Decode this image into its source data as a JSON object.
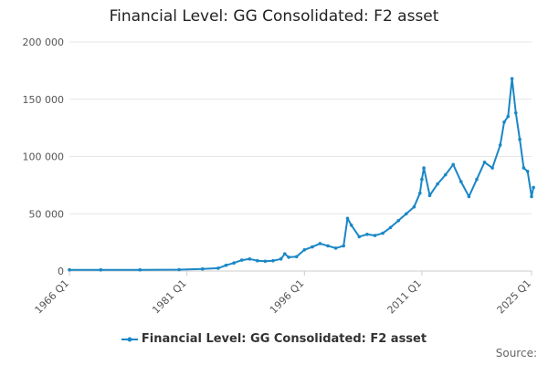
{
  "chart_data": {
    "type": "line",
    "title": "Financial Level: GG Consolidated: F2 asset",
    "xlabel": "",
    "ylabel": "",
    "x_range": [
      "1966 Q1",
      "2025 Q1"
    ],
    "x_tick_labels": [
      "1966 Q1",
      "1981 Q1",
      "1996 Q1",
      "2011 Q1",
      "2025 Q1"
    ],
    "y_tick_labels": [
      "0",
      "50 000",
      "100 000",
      "150 000",
      "200 000"
    ],
    "ylim": [
      0,
      200000
    ],
    "grid": "horizontal",
    "legend_position": "bottom-center",
    "colors": {
      "series": "#1a87c6"
    },
    "series": [
      {
        "name": "Financial Level: GG Consolidated: F2 asset",
        "points": [
          [
            "1966 Q1",
            1000
          ],
          [
            "1970 Q1",
            1000
          ],
          [
            "1975 Q1",
            1000
          ],
          [
            "1980 Q1",
            1200
          ],
          [
            "1983 Q1",
            1800
          ],
          [
            "1985 Q1",
            2500
          ],
          [
            "1986 Q1",
            5000
          ],
          [
            "1987 Q1",
            7000
          ],
          [
            "1988 Q1",
            9500
          ],
          [
            "1989 Q1",
            10500
          ],
          [
            "1990 Q1",
            9000
          ],
          [
            "1991 Q1",
            8500
          ],
          [
            "1992 Q1",
            9000
          ],
          [
            "1993 Q1",
            10500
          ],
          [
            "1993 Q3",
            15000
          ],
          [
            "1994 Q1",
            12000
          ],
          [
            "1995 Q1",
            12500
          ],
          [
            "1996 Q1",
            18500
          ],
          [
            "1997 Q1",
            21000
          ],
          [
            "1998 Q1",
            24000
          ],
          [
            "1999 Q1",
            22000
          ],
          [
            "2000 Q1",
            20000
          ],
          [
            "2001 Q1",
            22000
          ],
          [
            "2001 Q3",
            46000
          ],
          [
            "2002 Q1",
            40000
          ],
          [
            "2003 Q1",
            30000
          ],
          [
            "2004 Q1",
            32000
          ],
          [
            "2005 Q1",
            31000
          ],
          [
            "2006 Q1",
            33000
          ],
          [
            "2007 Q1",
            38000
          ],
          [
            "2008 Q1",
            44000
          ],
          [
            "2009 Q1",
            50000
          ],
          [
            "2010 Q1",
            56000
          ],
          [
            "2010 Q4",
            68000
          ],
          [
            "2011 Q1",
            80000
          ],
          [
            "2011 Q2",
            90000
          ],
          [
            "2012 Q1",
            66000
          ],
          [
            "2013 Q1",
            76000
          ],
          [
            "2014 Q1",
            84000
          ],
          [
            "2015 Q1",
            93000
          ],
          [
            "2016 Q1",
            78000
          ],
          [
            "2017 Q1",
            65000
          ],
          [
            "2018 Q1",
            80000
          ],
          [
            "2019 Q1",
            95000
          ],
          [
            "2020 Q1",
            90000
          ],
          [
            "2021 Q1",
            110000
          ],
          [
            "2021 Q3",
            130000
          ],
          [
            "2022 Q1",
            135000
          ],
          [
            "2022 Q3",
            168000
          ],
          [
            "2023 Q1",
            138000
          ],
          [
            "2023 Q3",
            115000
          ],
          [
            "2024 Q1",
            90000
          ],
          [
            "2024 Q3",
            87000
          ],
          [
            "2025 Q1",
            65000
          ],
          [
            "2025 Q2",
            73000
          ]
        ]
      }
    ]
  },
  "legend": {
    "label": "Financial Level: GG Consolidated: F2 asset"
  },
  "source": {
    "label": "Source:"
  }
}
